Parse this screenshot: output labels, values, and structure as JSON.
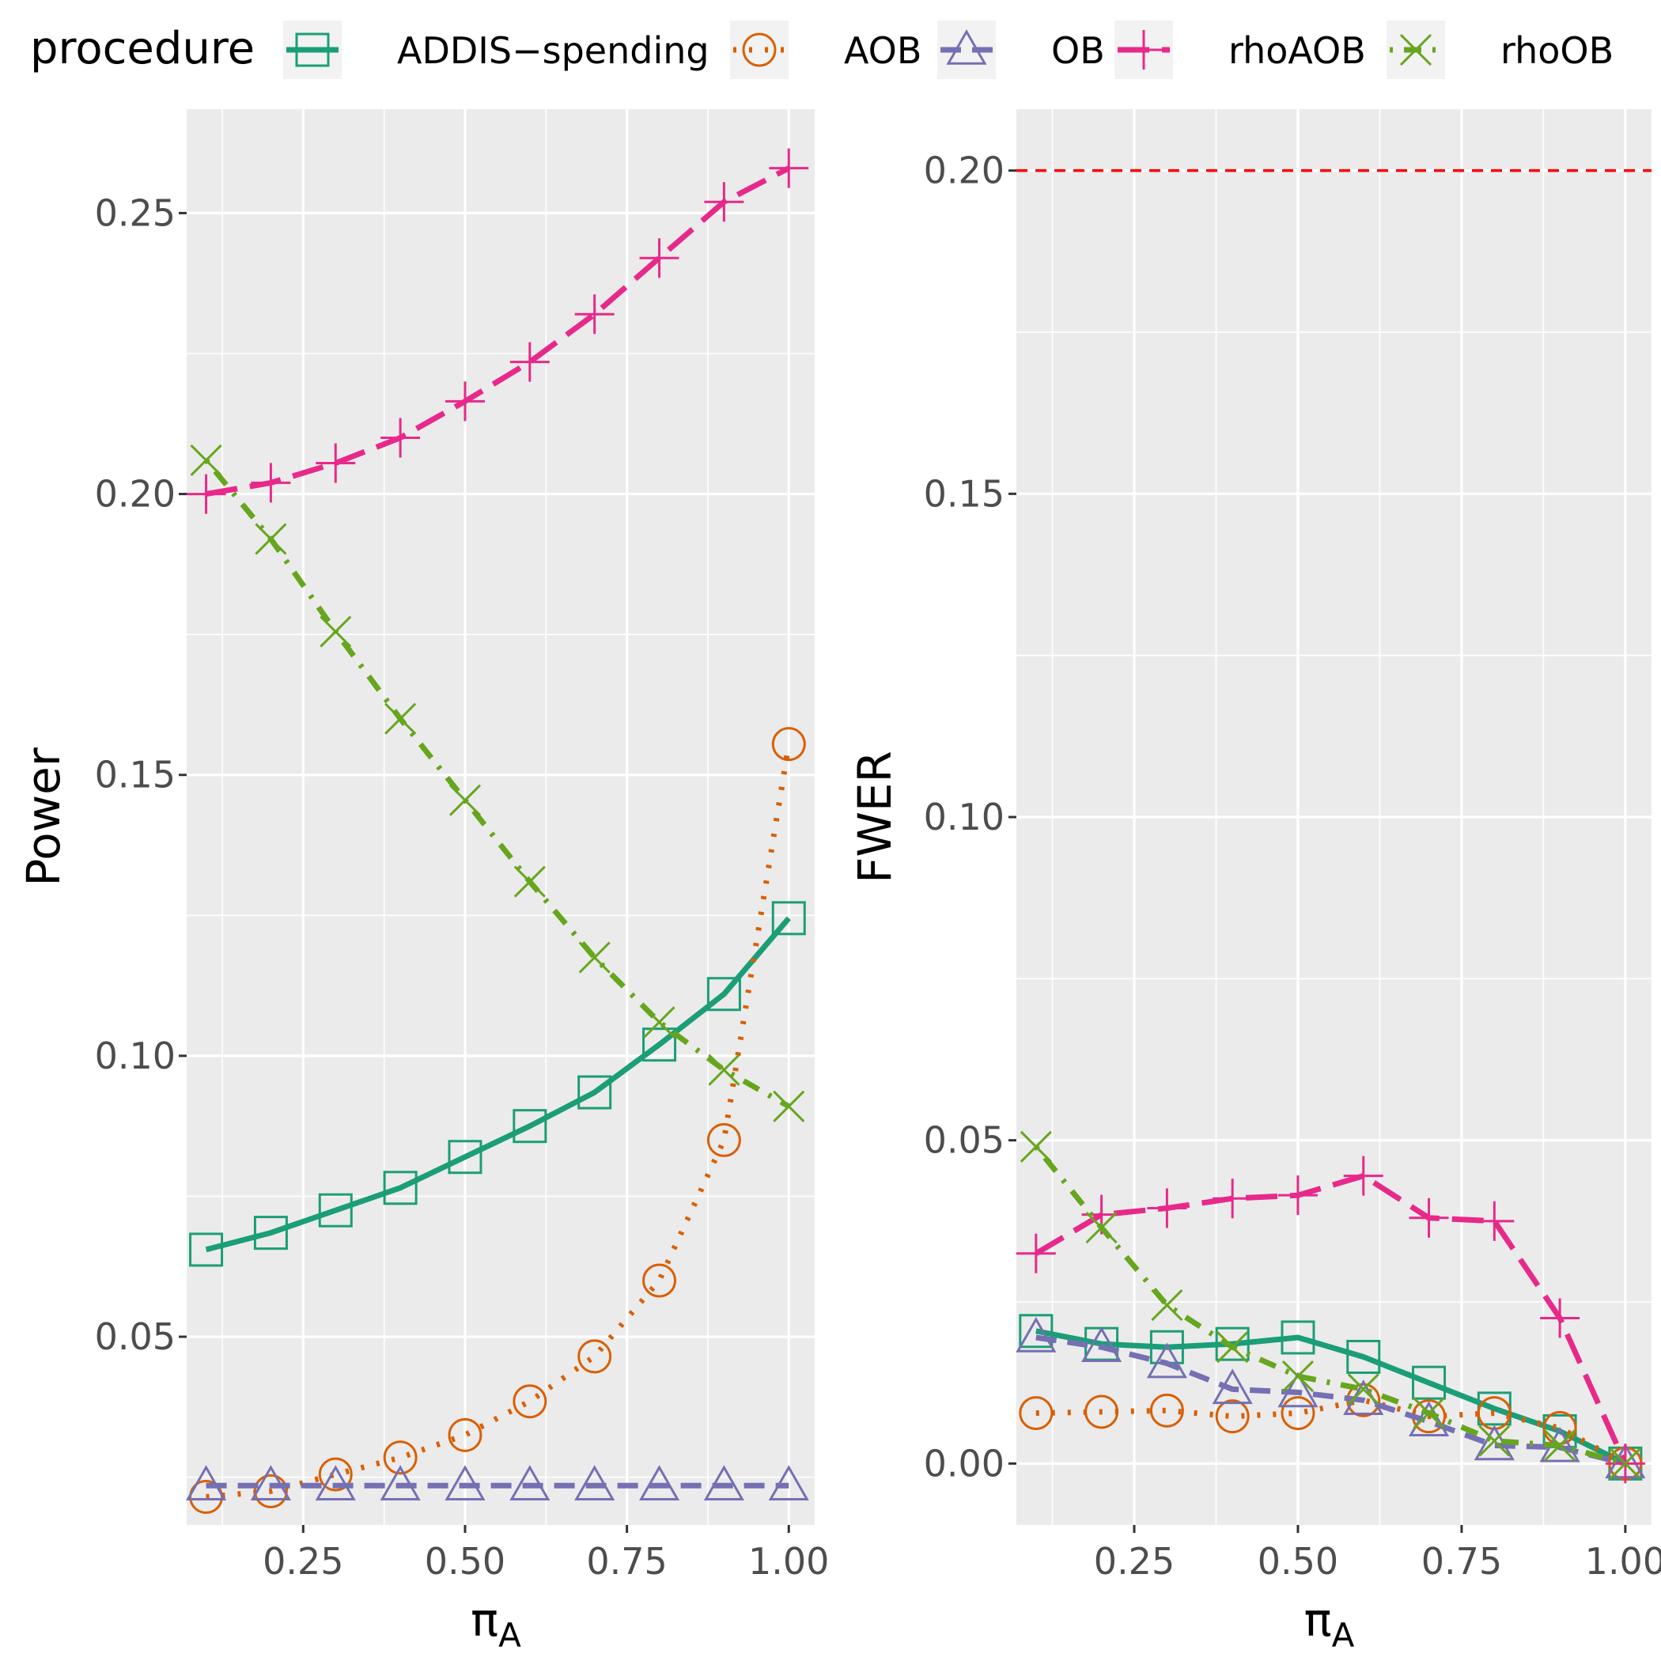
{
  "legend": {
    "title": "procedure",
    "entries": [
      {
        "label": "ADDIS−spending",
        "color": "#1b9e77",
        "dash": "solid",
        "shape": "square",
        "icon": "square-marker-icon"
      },
      {
        "label": "AOB",
        "color": "#d95f02",
        "dash": "dotted",
        "shape": "circle",
        "icon": "circle-marker-icon"
      },
      {
        "label": "OB",
        "color": "#7570b3",
        "dash": "dashed",
        "shape": "triangle",
        "icon": "triangle-marker-icon"
      },
      {
        "label": "rhoAOB",
        "color": "#e7298a",
        "dash": "longdash",
        "shape": "plus",
        "icon": "plus-marker-icon"
      },
      {
        "label": "rhoOB",
        "color": "#66a61e",
        "dash": "dotdash",
        "shape": "cross",
        "icon": "cross-marker-icon"
      }
    ]
  },
  "chart_data": [
    {
      "type": "line",
      "title": "",
      "xlabel": "π",
      "xlabel_subscript": "A",
      "ylabel": "Power",
      "xlim": [
        0.07,
        1.04
      ],
      "ylim": [
        0.0165,
        0.2685
      ],
      "xticks": [
        0.25,
        0.5,
        0.75,
        1.0
      ],
      "xtick_labels": [
        "0.25",
        "0.50",
        "0.75",
        "1.00"
      ],
      "yticks": [
        0.05,
        0.1,
        0.15,
        0.2,
        0.25
      ],
      "ytick_labels": [
        "0.05",
        "0.10",
        "0.15",
        "0.20",
        "0.25"
      ],
      "grid": true,
      "x": [
        0.1,
        0.2,
        0.3,
        0.4,
        0.5,
        0.6,
        0.7,
        0.8,
        0.9,
        1.0
      ],
      "series": [
        {
          "name": "ADDIS−spending",
          "values": [
            0.0655,
            0.0685,
            0.0725,
            0.0765,
            0.082,
            0.0875,
            0.0935,
            0.102,
            0.111,
            0.1245
          ]
        },
        {
          "name": "AOB",
          "values": [
            0.0215,
            0.0225,
            0.0255,
            0.0285,
            0.0325,
            0.0385,
            0.0465,
            0.06,
            0.085,
            0.1555
          ]
        },
        {
          "name": "OB",
          "values": [
            0.0235,
            0.0235,
            0.0235,
            0.0235,
            0.0235,
            0.0235,
            0.0235,
            0.0235,
            0.0235,
            0.0235
          ]
        },
        {
          "name": "rhoAOB",
          "values": [
            0.2,
            0.202,
            0.2055,
            0.21,
            0.2165,
            0.2235,
            0.232,
            0.242,
            0.252,
            0.258
          ]
        },
        {
          "name": "rhoOB",
          "values": [
            0.206,
            0.192,
            0.1755,
            0.16,
            0.1455,
            0.131,
            0.1175,
            0.106,
            0.0975,
            0.091
          ]
        }
      ]
    },
    {
      "type": "line",
      "title": "",
      "xlabel": "π",
      "xlabel_subscript": "A",
      "ylabel": "FWER",
      "xlim": [
        0.07,
        1.04
      ],
      "ylim": [
        -0.0095,
        0.2095
      ],
      "xticks": [
        0.25,
        0.5,
        0.75,
        1.0
      ],
      "xtick_labels": [
        "0.25",
        "0.50",
        "0.75",
        "1.00"
      ],
      "yticks": [
        0.0,
        0.05,
        0.1,
        0.15,
        0.2
      ],
      "ytick_labels": [
        "0.00",
        "0.05",
        "0.10",
        "0.15",
        "0.20"
      ],
      "grid": true,
      "reference_line": {
        "y": 0.2,
        "color": "#ff0000",
        "style": "dashed"
      },
      "x": [
        0.1,
        0.2,
        0.3,
        0.4,
        0.5,
        0.6,
        0.7,
        0.8,
        0.9,
        1.0
      ],
      "series": [
        {
          "name": "ADDIS−spending",
          "values": [
            0.0205,
            0.0185,
            0.018,
            0.0185,
            0.0195,
            0.0165,
            0.0125,
            0.0085,
            0.005,
            0.0
          ]
        },
        {
          "name": "AOB",
          "values": [
            0.0078,
            0.008,
            0.0082,
            0.0073,
            0.0078,
            0.0098,
            0.0073,
            0.0078,
            0.0055,
            0.0
          ]
        },
        {
          "name": "OB",
          "values": [
            0.0195,
            0.018,
            0.0155,
            0.0115,
            0.011,
            0.0098,
            0.0065,
            0.0028,
            0.0025,
            0.0
          ]
        },
        {
          "name": "rhoAOB",
          "values": [
            0.0325,
            0.0385,
            0.0395,
            0.041,
            0.0415,
            0.0445,
            0.038,
            0.0375,
            0.0225,
            0.0
          ]
        },
        {
          "name": "rhoOB",
          "values": [
            0.049,
            0.0365,
            0.0245,
            0.018,
            0.0135,
            0.0115,
            0.0078,
            0.0035,
            0.0028,
            0.0
          ]
        }
      ]
    }
  ]
}
